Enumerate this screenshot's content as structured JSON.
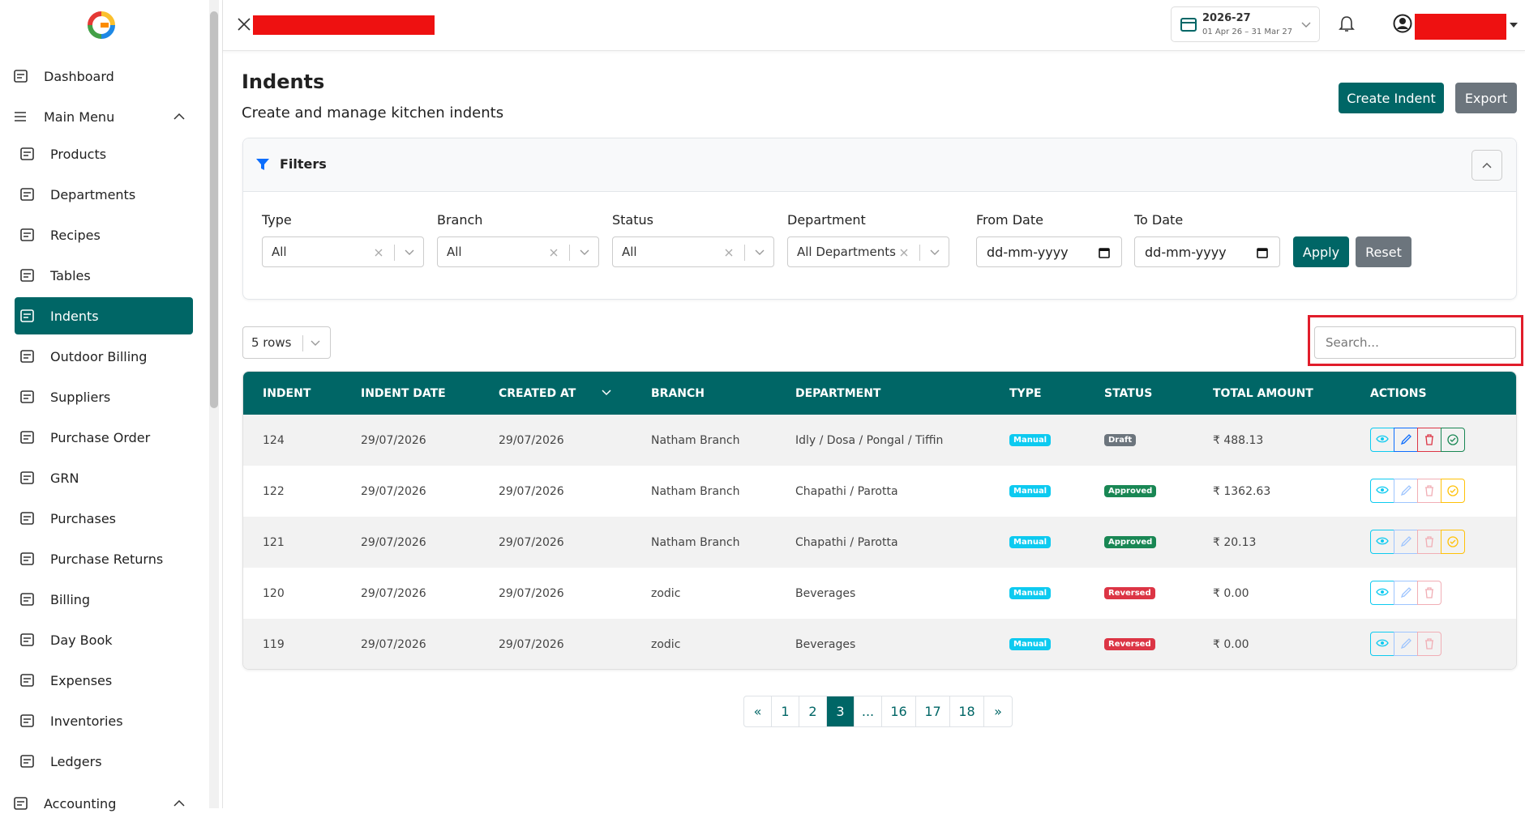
{
  "sidebar": {
    "items": [
      "Dashboard",
      "Main Menu",
      "Products",
      "Departments",
      "Recipes",
      "Tables",
      "Indents",
      "Outdoor Billing",
      "Suppliers",
      "Purchase Order",
      "GRN",
      "Purchases",
      "Purchase Returns",
      "Billing",
      "Day Book",
      "Expenses",
      "Inventories",
      "Ledgers",
      "Accounting"
    ]
  },
  "header": {
    "fy": "2026-27",
    "fy_range": "01 Apr 26 – 31 Mar 27"
  },
  "page": {
    "title": "Indents",
    "subtitle": "Create and manage kitchen indents",
    "create": "Create Indent",
    "export": "Export"
  },
  "filters": {
    "title": "Filters",
    "selects": [
      {
        "label": "Type",
        "value": "All"
      },
      {
        "label": "Branch",
        "value": "All"
      },
      {
        "label": "Status",
        "value": "All"
      },
      {
        "label": "Department",
        "value": "All Departments"
      }
    ],
    "dates": [
      {
        "label": "From Date",
        "value": "dd-mm-yyyy"
      },
      {
        "label": "To Date",
        "value": "dd-mm-yyyy"
      }
    ],
    "apply": "Apply",
    "reset": "Reset"
  },
  "table": {
    "rows_select": "5 rows",
    "search_placeholder": "Search...",
    "columns": [
      "INDENT",
      "INDENT DATE",
      "CREATED AT",
      "BRANCH",
      "DEPARTMENT",
      "TYPE",
      "STATUS",
      "TOTAL AMOUNT",
      "ACTIONS"
    ],
    "rows": [
      {
        "cells": [
          "124",
          "29/07/2026",
          "29/07/2026",
          "Natham Branch",
          "Idly / Dosa / Pongal / Tiffin",
          "Manual",
          "Draft",
          "₹ 488.13"
        ],
        "status_color": "#6c757d",
        "actions": [
          "#0dcaf0",
          "#0d6efd",
          "#dc3545",
          "#198754"
        ]
      },
      {
        "cells": [
          "122",
          "29/07/2026",
          "29/07/2026",
          "Natham Branch",
          "Chapathi / Parotta",
          "Manual",
          "Approved",
          "₹ 1362.63"
        ],
        "status_color": "#198754",
        "actions": [
          "#0dcaf0",
          "#9ec5fe",
          "#f1aeb5",
          "#ffc107"
        ]
      },
      {
        "cells": [
          "121",
          "29/07/2026",
          "29/07/2026",
          "Natham Branch",
          "Chapathi / Parotta",
          "Manual",
          "Approved",
          "₹ 20.13"
        ],
        "status_color": "#198754",
        "actions": [
          "#0dcaf0",
          "#9ec5fe",
          "#f1aeb5",
          "#ffc107"
        ]
      },
      {
        "cells": [
          "120",
          "29/07/2026",
          "29/07/2026",
          "zodic",
          "Beverages",
          "Manual",
          "Reversed",
          "₹ 0.00"
        ],
        "status_color": "#dc3545",
        "actions": [
          "#0dcaf0",
          "#9ec5fe",
          "#f1aeb5"
        ]
      },
      {
        "cells": [
          "119",
          "29/07/2026",
          "29/07/2026",
          "zodic",
          "Beverages",
          "Manual",
          "Reversed",
          "₹ 0.00"
        ],
        "status_color": "#dc3545",
        "actions": [
          "#0dcaf0",
          "#9ec5fe",
          "#f1aeb5"
        ]
      }
    ]
  },
  "pagination": [
    "«",
    "1",
    "2",
    "3",
    "...",
    "16",
    "17",
    "18",
    "»"
  ]
}
